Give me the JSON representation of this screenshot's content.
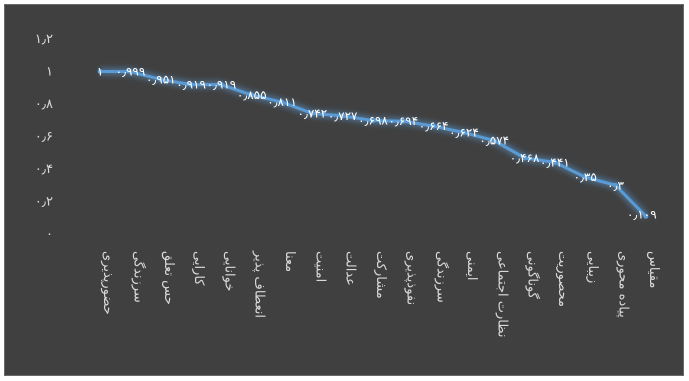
{
  "chart_data": {
    "type": "line",
    "title": "",
    "xlabel": "",
    "ylabel": "",
    "ylim": [
      0,
      1.2
    ],
    "y_ticks": [
      "۰",
      "۰٫۲",
      "۰٫۴",
      "۰٫۶",
      "۰٫۸",
      "۱",
      "۱٫۲"
    ],
    "grid": false,
    "legend": "none",
    "categories": [
      "حضورپذیری",
      "سرزندگی",
      "حس تعلق",
      "کارایی",
      "خوانایی",
      "انعطاف پذیر",
      "معنا",
      "امنیت",
      "عدالت",
      "مشارکت",
      "نفوذپذیری",
      "سرزندگی",
      "ایمنی",
      "نظارت اجتماعی",
      "گوناگونی",
      "محصوریت",
      "زیبایی",
      "پیاده محوری",
      "مقیاس"
    ],
    "values": [
      1,
      0.999,
      0.951,
      0.919,
      0.919,
      0.855,
      0.811,
      0.742,
      0.727,
      0.698,
      0.694,
      0.664,
      0.624,
      0.574,
      0.468,
      0.441,
      0.35,
      0.3,
      0.109
    ],
    "data_labels": [
      "۱",
      "۰٫۹۹۹",
      "۰٫۹۵۱",
      "۰٫۹۱۹",
      "۰٫۹۱۹",
      "۰٫۸۵۵",
      "۰٫۸۱۱",
      "۰٫۷۴۲",
      "۰٫۷۲۷",
      "۰٫۶۹۸",
      "۰٫۶۹۴",
      "۰٫۶۶۴",
      "۰٫۶۲۴",
      "۰٫۵۷۴",
      "۰٫۴۶۸",
      "۰٫۴۴۱",
      "۰٫۳۵",
      "۰٫۳",
      "۰٫۱۰۹"
    ],
    "colors": {
      "background": "#404040",
      "line": "#5b9bd5",
      "text": "#d9d9d9"
    }
  }
}
